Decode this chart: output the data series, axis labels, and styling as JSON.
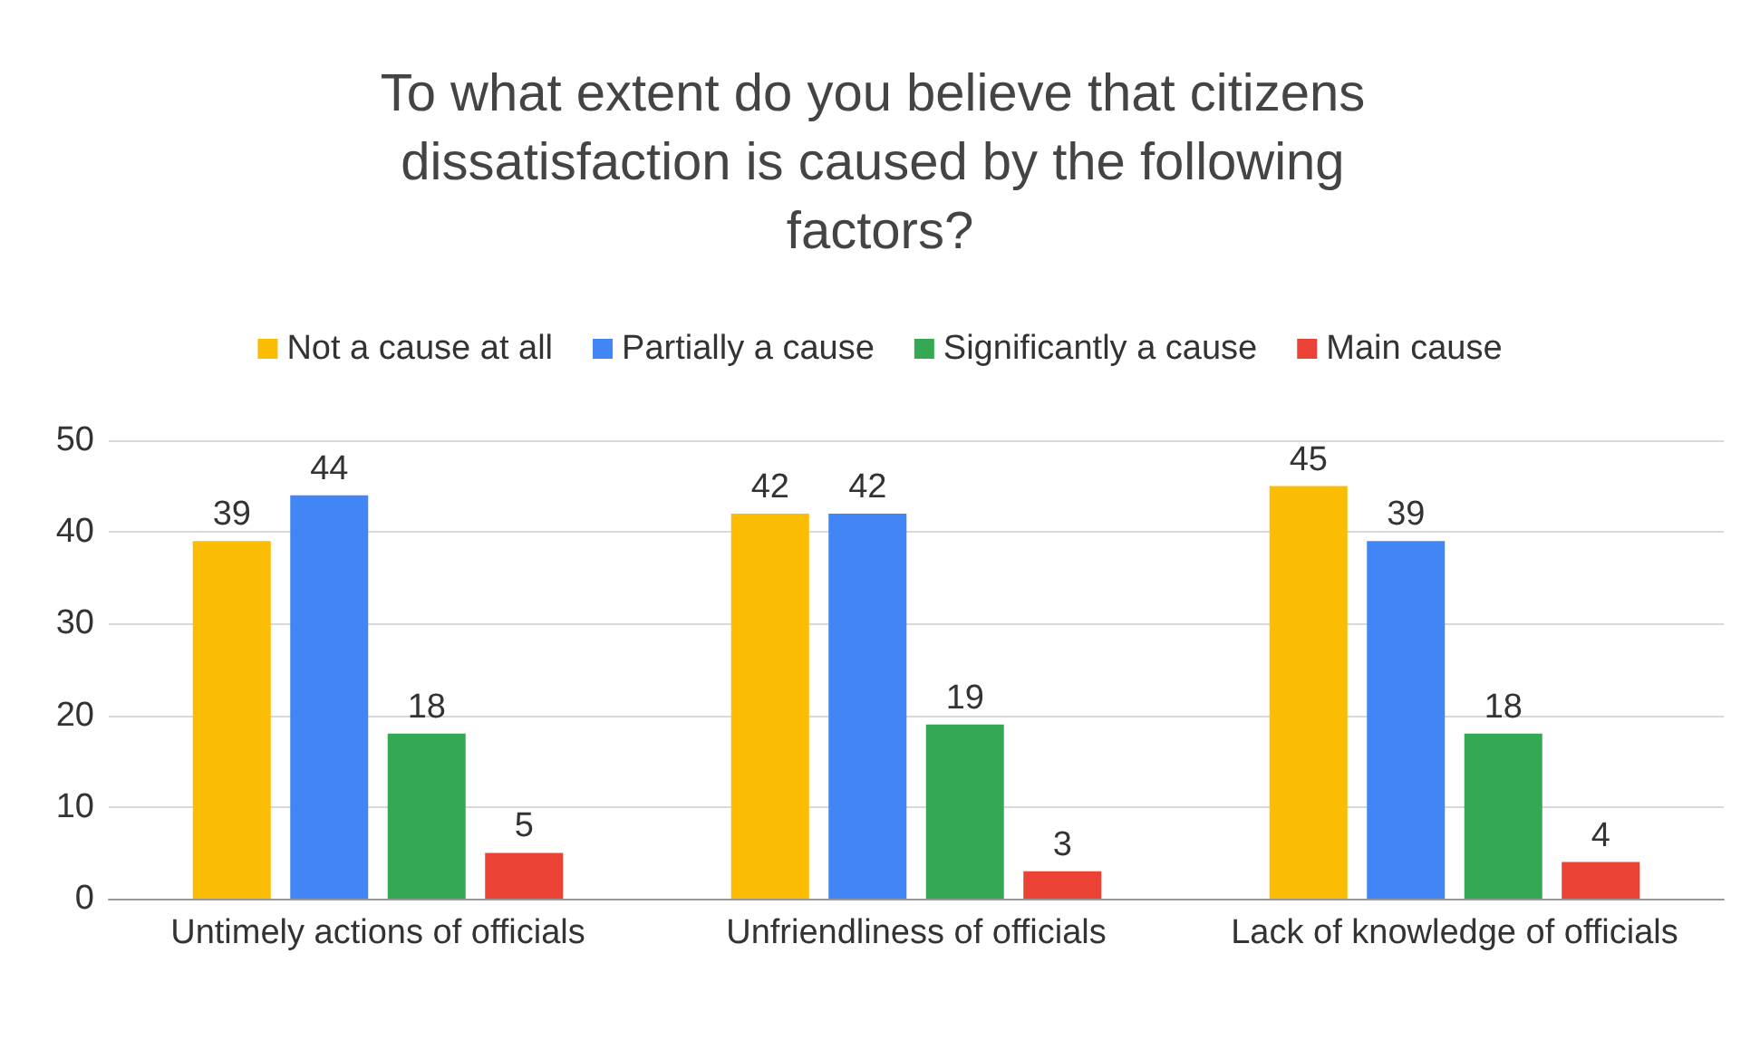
{
  "chart_data": {
    "type": "bar",
    "title": "To what extent do you believe that citizens dissatisfaction is caused by the following factors?",
    "categories": [
      "Untimely actions of officials",
      "Unfriendliness of officials",
      "Lack of knowledge of officials"
    ],
    "series": [
      {
        "name": "Not a cause at all",
        "color": "#fbbc04",
        "values": [
          39,
          42,
          45
        ]
      },
      {
        "name": "Partially a cause",
        "color": "#4285f4",
        "values": [
          44,
          42,
          39
        ]
      },
      {
        "name": "Significantly a cause",
        "color": "#34a853",
        "values": [
          18,
          19,
          18
        ]
      },
      {
        "name": "Main cause",
        "color": "#ea4335",
        "values": [
          5,
          3,
          4
        ]
      }
    ],
    "ylim": [
      0,
      50
    ],
    "yticks": [
      0,
      10,
      20,
      30,
      40,
      50
    ],
    "grid": "y",
    "legend": "top",
    "data_labels": true
  }
}
